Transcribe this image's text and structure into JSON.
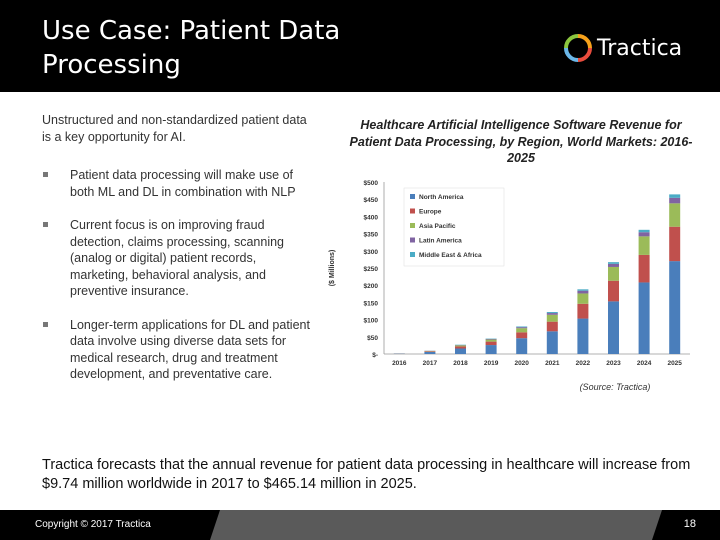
{
  "slide": {
    "title_line1": "Use Case:  Patient Data",
    "title_line2": "Processing",
    "brand": "Tractica",
    "intro": "Unstructured and non-standardized patient data is a key opportunity for AI.",
    "bullets": [
      "Patient data processing will make use of both ML and DL in combination with NLP",
      "Current focus is on improving fraud detection, claims processing, scanning (analog or digital) patient records, marketing, behavioral analysis, and preventive insurance.",
      "Longer-term applications for DL and patient data involve using diverse data sets for medical research, drug and treatment development, and preventative care."
    ],
    "summary": "Tractica forecasts that the annual revenue for patient data processing in healthcare will increase from $9.74 million worldwide in 2017 to $465.14 million in 2025.",
    "source": "(Source: Tractica)",
    "copyright": "Copyright © 2017 Tractica",
    "page_number": "18"
  },
  "chart_data": {
    "type": "bar",
    "stacked": true,
    "title": "Healthcare Artificial Intelligence Software Revenue for Patient Data Processing, by Region, World Markets: 2016-2025",
    "ylabel": "($ Millions)",
    "ylim": [
      0,
      500
    ],
    "yticks": [
      "$-",
      "$50",
      "$100",
      "$150",
      "$200",
      "$250",
      "$300",
      "$350",
      "$400",
      "$450",
      "$500"
    ],
    "categories": [
      "2016",
      "2017",
      "2018",
      "2019",
      "2020",
      "2021",
      "2022",
      "2023",
      "2024",
      "2025"
    ],
    "legend_position": "top-left",
    "series": [
      {
        "name": "North America",
        "color": "#4a7ebb",
        "values": [
          1,
          6,
          16,
          26,
          46,
          66,
          103,
          153,
          208,
          270
        ]
      },
      {
        "name": "Europe",
        "color": "#c0504d",
        "values": [
          0.3,
          2,
          6,
          10,
          17,
          28,
          43,
          60,
          80,
          100
        ]
      },
      {
        "name": "Asia Pacific",
        "color": "#9bbb59",
        "values": [
          0.2,
          1,
          3,
          6,
          12,
          20,
          30,
          40,
          54,
          68
        ]
      },
      {
        "name": "Latin America",
        "color": "#8064a2",
        "values": [
          0.1,
          0.4,
          1,
          2,
          3,
          5,
          8,
          9,
          12,
          16
        ]
      },
      {
        "name": "Middle East & Africa",
        "color": "#4bacc6",
        "values": [
          0.1,
          0.3,
          1,
          1,
          2,
          3,
          4,
          5,
          7,
          10
        ]
      }
    ]
  }
}
